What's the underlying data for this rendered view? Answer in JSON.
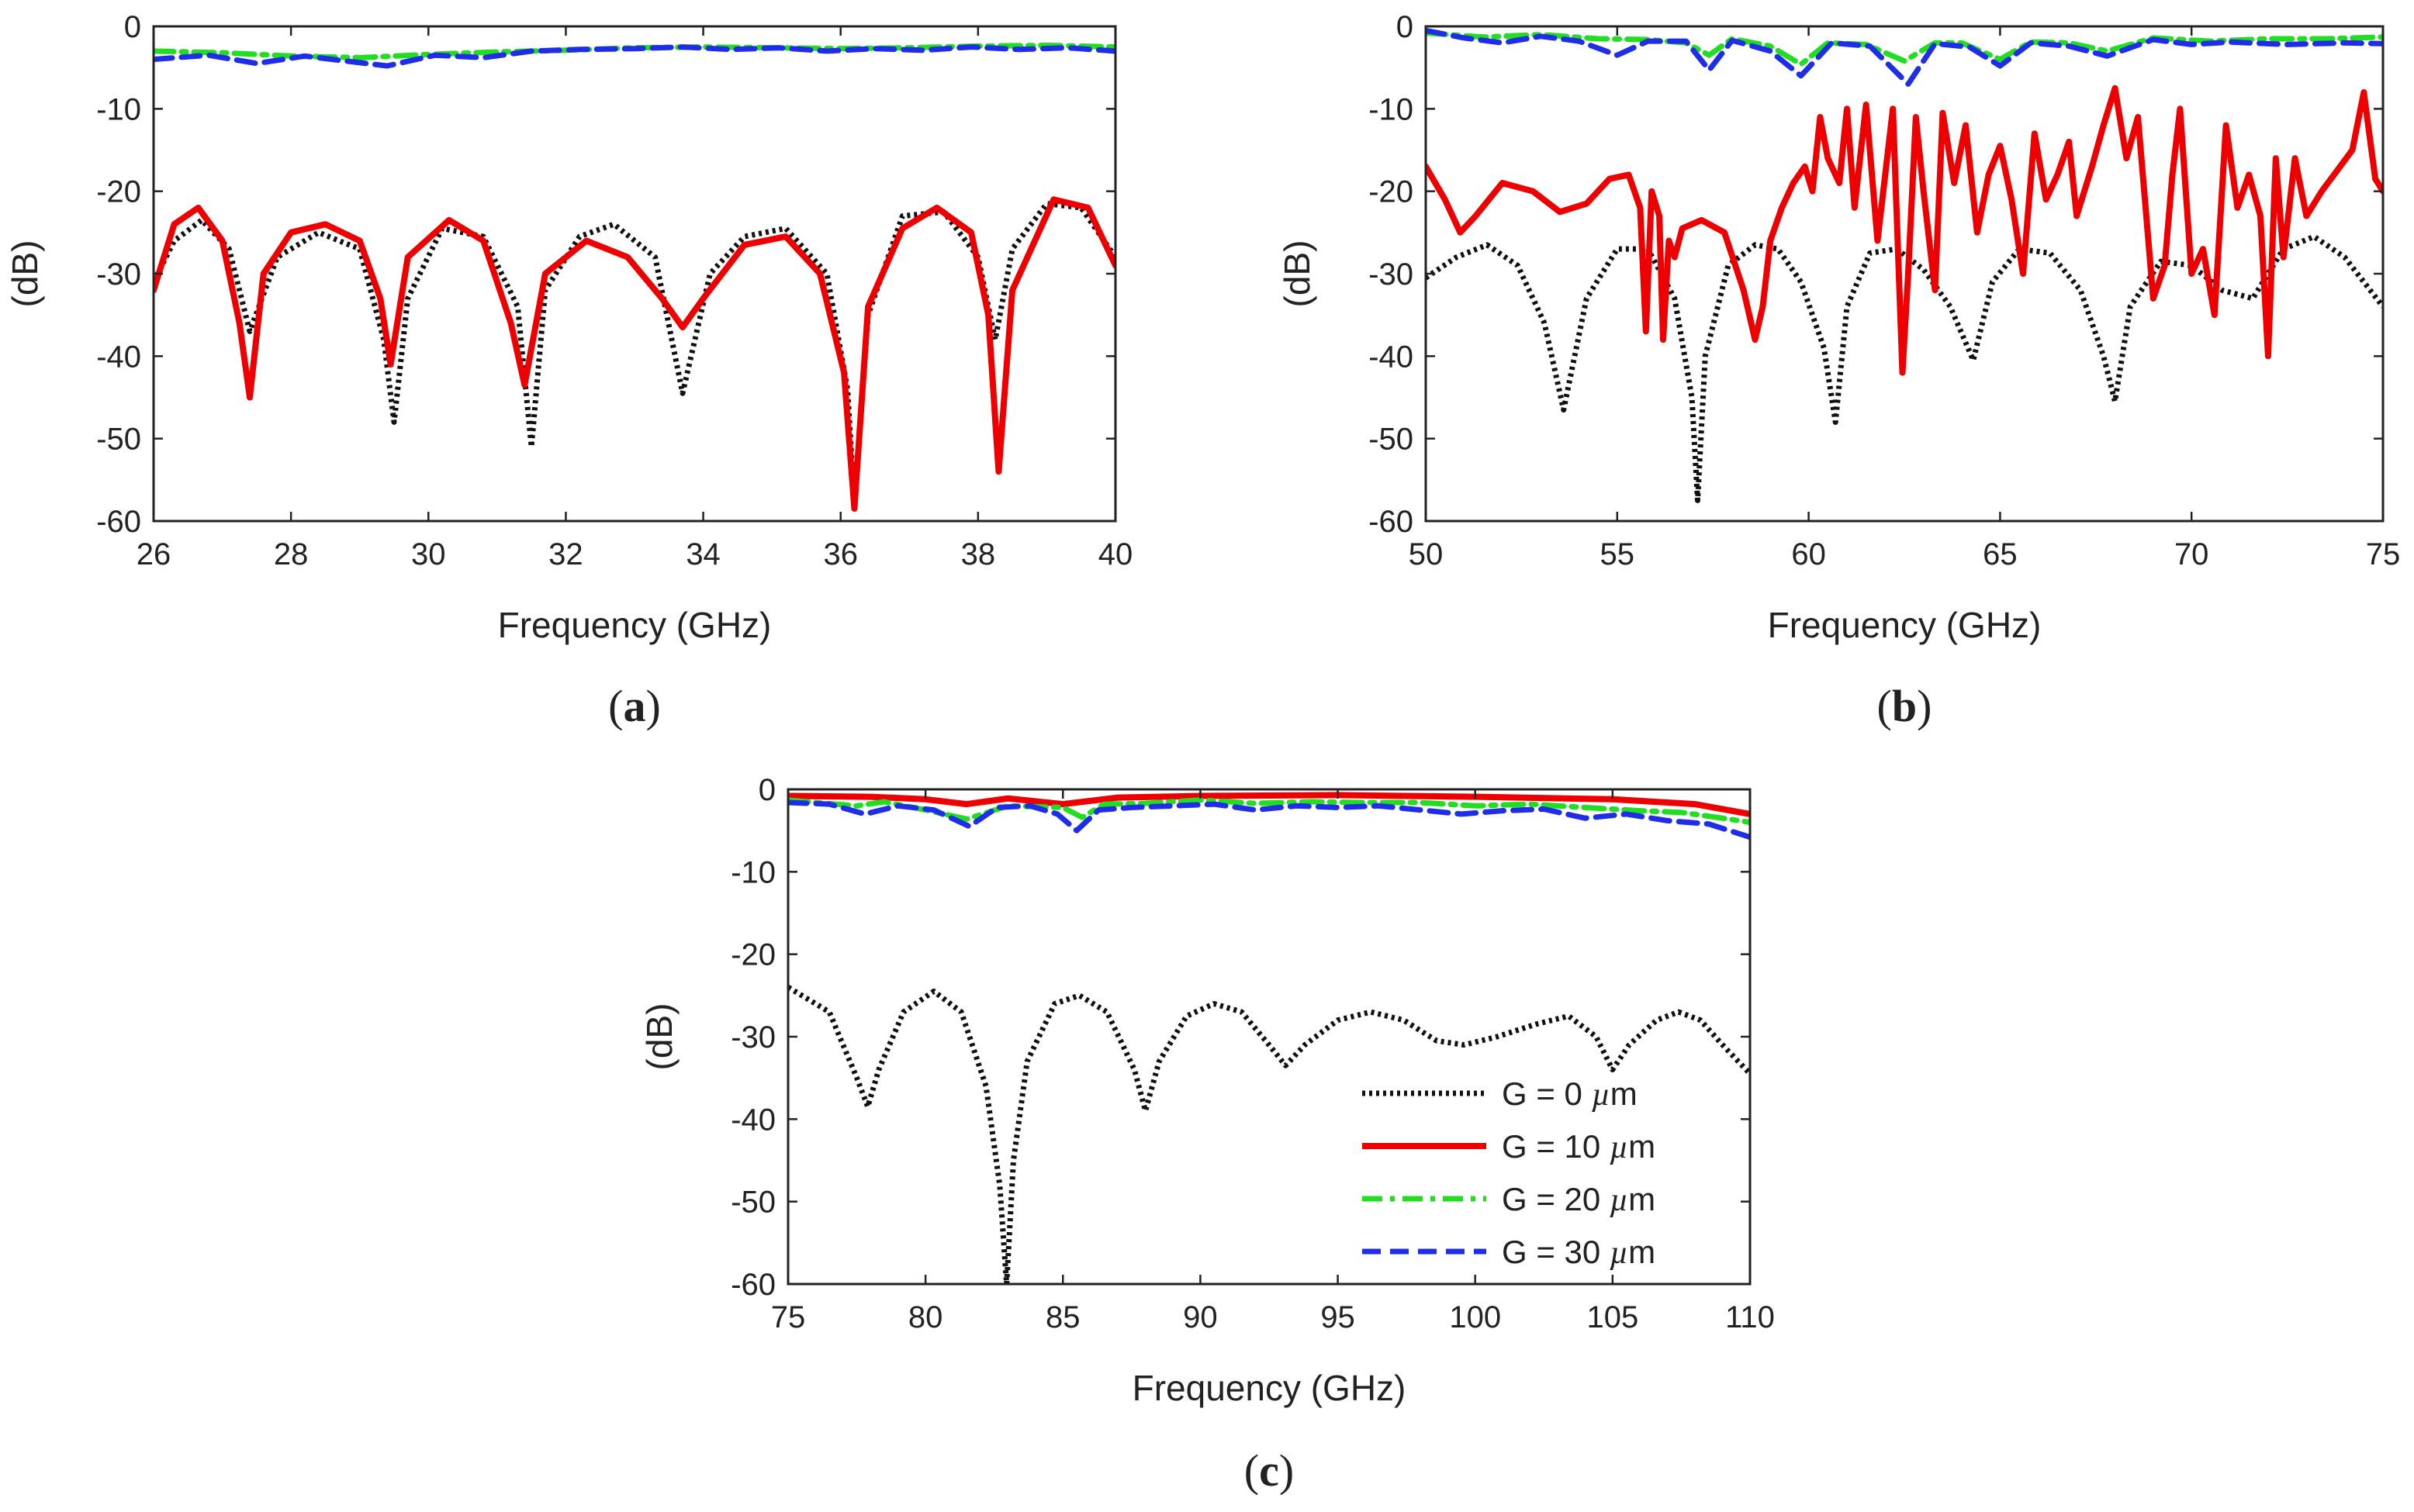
{
  "chart_data": [
    {
      "type": "line",
      "panel": "a",
      "panel_label": "a",
      "xlabel": "Frequency (GHz)",
      "ylabel": "(dB)",
      "xlim": [
        26,
        40
      ],
      "ylim": [
        -60,
        0
      ],
      "xticks": [
        26,
        28,
        30,
        32,
        34,
        36,
        38,
        40
      ],
      "yticks": [
        0,
        -10,
        -20,
        -30,
        -40,
        -50,
        -60
      ],
      "grid": false,
      "series": [
        {
          "name": "G = 0 µm",
          "color": "#111111",
          "style": "dotted",
          "x": [
            26,
            26.3,
            26.7,
            27.1,
            27.4,
            27.8,
            28.4,
            29.0,
            29.35,
            29.5,
            29.7,
            30.2,
            30.8,
            31.3,
            31.5,
            31.7,
            32.2,
            32.7,
            33.3,
            33.7,
            34.1,
            34.6,
            35.2,
            35.8,
            36.1,
            36.2,
            36.4,
            36.9,
            37.5,
            38.0,
            38.25,
            38.5,
            39.0,
            39.5,
            40
          ],
          "y": [
            -31,
            -26,
            -23.5,
            -27,
            -37,
            -28,
            -25,
            -27,
            -38,
            -48,
            -33,
            -24.5,
            -25.5,
            -34,
            -51,
            -32,
            -25.5,
            -24,
            -28,
            -44.5,
            -30,
            -25.5,
            -24.5,
            -30,
            -44,
            -58,
            -35,
            -23,
            -22.5,
            -28,
            -38,
            -27,
            -21.5,
            -22,
            -28
          ]
        },
        {
          "name": "G = 10 µm",
          "color": "#ee0000",
          "style": "solid",
          "x": [
            26,
            26.3,
            26.65,
            27.0,
            27.25,
            27.4,
            27.6,
            28.0,
            28.5,
            29.0,
            29.3,
            29.45,
            29.7,
            30.3,
            30.8,
            31.2,
            31.4,
            31.7,
            32.3,
            32.9,
            33.4,
            33.7,
            34.0,
            34.6,
            35.2,
            35.7,
            36.05,
            36.2,
            36.4,
            36.9,
            37.4,
            37.9,
            38.15,
            38.3,
            38.5,
            39.1,
            39.6,
            40
          ],
          "y": [
            -32,
            -24,
            -22,
            -26,
            -36,
            -45,
            -30,
            -25,
            -24,
            -26,
            -33,
            -41,
            -28,
            -23.5,
            -26,
            -36,
            -43.5,
            -30,
            -26,
            -28,
            -33,
            -36.5,
            -33,
            -26.5,
            -25.5,
            -30,
            -42,
            -58.5,
            -34,
            -24.5,
            -22,
            -25,
            -35,
            -54,
            -32,
            -21,
            -22,
            -29
          ]
        },
        {
          "name": "G = 20 µm",
          "color": "#22dd22",
          "style": "dashdot",
          "x": [
            26,
            27,
            28,
            29,
            29.5,
            30,
            31,
            32,
            33,
            34,
            35,
            36,
            37,
            38,
            39,
            40
          ],
          "y": [
            -3,
            -3.2,
            -3.6,
            -3.8,
            -3.6,
            -3.4,
            -3.1,
            -2.9,
            -2.6,
            -2.5,
            -2.6,
            -2.7,
            -2.6,
            -2.4,
            -2.3,
            -2.5
          ]
        },
        {
          "name": "G = 30 µm",
          "color": "#1f2ee6",
          "style": "dashed",
          "x": [
            26,
            26.8,
            27.5,
            28.2,
            28.8,
            29.4,
            30.1,
            30.8,
            31.5,
            32.2,
            33.0,
            33.7,
            34.4,
            35.1,
            35.8,
            36.5,
            37.2,
            37.9,
            38.6,
            39.3,
            40
          ],
          "y": [
            -4,
            -3.5,
            -4.5,
            -3.6,
            -4.2,
            -4.8,
            -3.5,
            -3.8,
            -3.0,
            -2.8,
            -2.7,
            -2.5,
            -2.8,
            -2.6,
            -3.0,
            -2.7,
            -2.9,
            -2.5,
            -2.8,
            -2.6,
            -3.0
          ]
        }
      ]
    },
    {
      "type": "line",
      "panel": "b",
      "panel_label": "b",
      "xlabel": "Frequency (GHz)",
      "ylabel": "(dB)",
      "xlim": [
        50,
        75
      ],
      "ylim": [
        -60,
        0
      ],
      "xticks": [
        50,
        55,
        60,
        65,
        70,
        75
      ],
      "yticks": [
        0,
        -10,
        -20,
        -30,
        -40,
        -50,
        -60
      ],
      "grid": false,
      "series": [
        {
          "name": "G = 0 µm",
          "color": "#111111",
          "style": "dotted",
          "x": [
            50,
            50.8,
            51.6,
            52.4,
            53.1,
            53.6,
            54.2,
            55.0,
            55.8,
            56.5,
            56.95,
            57.1,
            57.3,
            57.9,
            58.6,
            59.2,
            59.8,
            60.4,
            60.7,
            61.0,
            61.6,
            62.3,
            63.0,
            63.7,
            64.3,
            64.8,
            65.5,
            66.3,
            67.1,
            67.7,
            68.0,
            68.4,
            69.2,
            70.0,
            70.8,
            71.6,
            72.4,
            73.2,
            74.0,
            75
          ],
          "y": [
            -30.5,
            -28,
            -26.5,
            -29,
            -36,
            -46.5,
            -33,
            -27,
            -27,
            -33,
            -45,
            -57.5,
            -40,
            -29,
            -26.5,
            -27,
            -31,
            -39,
            -48,
            -34,
            -27.5,
            -27,
            -29.5,
            -34,
            -40.5,
            -31,
            -27,
            -27.5,
            -32,
            -40,
            -45.5,
            -34,
            -28.5,
            -29,
            -32,
            -33,
            -27,
            -25.5,
            -28,
            -34
          ]
        },
        {
          "name": "G = 10 µm",
          "color": "#ee0000",
          "style": "solid",
          "x": [
            50,
            50.5,
            50.9,
            51.3,
            52.0,
            52.8,
            53.5,
            54.2,
            54.8,
            55.3,
            55.6,
            55.75,
            55.9,
            56.1,
            56.2,
            56.35,
            56.5,
            56.7,
            57.2,
            57.8,
            58.3,
            58.6,
            58.8,
            59.0,
            59.3,
            59.6,
            59.9,
            60.1,
            60.3,
            60.5,
            60.8,
            61.0,
            61.2,
            61.5,
            61.8,
            62.0,
            62.2,
            62.45,
            62.6,
            62.8,
            63.0,
            63.3,
            63.5,
            63.8,
            64.1,
            64.4,
            64.7,
            65.0,
            65.3,
            65.6,
            65.9,
            66.2,
            66.5,
            66.8,
            67.0,
            67.4,
            67.7,
            68.0,
            68.3,
            68.6,
            68.8,
            69.0,
            69.3,
            69.5,
            69.7,
            70.0,
            70.3,
            70.6,
            70.9,
            71.2,
            71.5,
            71.8,
            72.0,
            72.2,
            72.4,
            72.7,
            73.0,
            73.4,
            73.8,
            74.2,
            74.5,
            74.8,
            75
          ],
          "y": [
            -17,
            -21,
            -25,
            -23,
            -19,
            -20,
            -22.5,
            -21.5,
            -18.5,
            -18,
            -22,
            -37,
            -20,
            -23,
            -38,
            -26,
            -28,
            -24.5,
            -23.5,
            -25,
            -32,
            -38,
            -34,
            -26,
            -22,
            -19,
            -17,
            -20,
            -11,
            -16,
            -19,
            -10,
            -22,
            -9.5,
            -26,
            -18,
            -10,
            -42,
            -30,
            -11,
            -20,
            -32,
            -10.5,
            -19,
            -12,
            -25,
            -18,
            -14.5,
            -21,
            -30,
            -13,
            -21,
            -18,
            -14,
            -23,
            -17,
            -12,
            -7.5,
            -16,
            -11,
            -22,
            -33,
            -29,
            -18,
            -10,
            -30,
            -27,
            -35,
            -12,
            -22,
            -18,
            -23,
            -40,
            -16,
            -28,
            -16,
            -23,
            -20,
            -17.5,
            -15,
            -8,
            -18.5,
            -20
          ]
        },
        {
          "name": "G = 20 µm",
          "color": "#22dd22",
          "style": "dashdot",
          "x": [
            50,
            51.5,
            53,
            54.5,
            55.8,
            56.8,
            57.4,
            58,
            59,
            59.8,
            60.5,
            61.5,
            62.5,
            63.3,
            64,
            65,
            65.8,
            66.8,
            67.8,
            69,
            70.5,
            72,
            73.5,
            75
          ],
          "y": [
            -0.8,
            -1.3,
            -1.0,
            -1.5,
            -1.6,
            -2.0,
            -3.5,
            -1.5,
            -2.4,
            -4.6,
            -2.0,
            -2.2,
            -4.2,
            -2.0,
            -2.0,
            -4.0,
            -1.9,
            -2.0,
            -3.0,
            -1.4,
            -1.8,
            -1.5,
            -1.5,
            -1.3
          ]
        },
        {
          "name": "G = 30 µm",
          "color": "#1f2ee6",
          "style": "dashed",
          "x": [
            50,
            51,
            52,
            53,
            54,
            55,
            55.8,
            56.8,
            57.4,
            58,
            59,
            59.8,
            60.6,
            61.6,
            62.6,
            63.3,
            64.2,
            65,
            65.8,
            66.8,
            67.8,
            69,
            70,
            71,
            72.5,
            74,
            75
          ],
          "y": [
            -0.5,
            -1.4,
            -2.0,
            -1.2,
            -1.8,
            -3.5,
            -1.8,
            -1.8,
            -5.3,
            -1.7,
            -3.0,
            -6.0,
            -2.0,
            -2.4,
            -7.0,
            -2.1,
            -2.5,
            -4.8,
            -2.0,
            -2.4,
            -3.6,
            -1.6,
            -2.2,
            -1.9,
            -2.2,
            -2.0,
            -2.1
          ]
        }
      ]
    },
    {
      "type": "line",
      "panel": "c",
      "panel_label": "c",
      "xlabel": "Frequency (GHz)",
      "ylabel": "(dB)",
      "xlim": [
        75,
        110
      ],
      "ylim": [
        -60,
        0
      ],
      "xticks": [
        75,
        80,
        85,
        90,
        95,
        100,
        105,
        110
      ],
      "yticks": [
        0,
        -10,
        -20,
        -30,
        -40,
        -50,
        -60
      ],
      "grid": false,
      "legend": "bottom-right",
      "series": [
        {
          "name": "G = 0 µm",
          "color": "#111111",
          "style": "dotted",
          "x": [
            75,
            76.5,
            77.5,
            77.9,
            78.3,
            79.2,
            80.3,
            81.3,
            82.2,
            82.7,
            82.95,
            83.2,
            83.7,
            84.7,
            85.6,
            86.6,
            87.6,
            88.0,
            88.5,
            89.5,
            90.5,
            91.5,
            92.5,
            93.1,
            93.8,
            95,
            96.2,
            97.4,
            98.6,
            99.6,
            100.8,
            102.2,
            103.4,
            104.4,
            105.0,
            105.6,
            106.6,
            107.4,
            108.2,
            109,
            110
          ],
          "y": [
            -24,
            -27,
            -35,
            -38.5,
            -34,
            -27,
            -24.5,
            -27,
            -36,
            -48,
            -60,
            -45,
            -33,
            -26,
            -25,
            -27,
            -34,
            -39,
            -33,
            -27.5,
            -26,
            -27,
            -31,
            -33.5,
            -31,
            -28,
            -27,
            -28,
            -30.5,
            -31,
            -30,
            -28.5,
            -27.5,
            -30,
            -34,
            -31,
            -28,
            -27,
            -28,
            -31,
            -34.5
          ]
        },
        {
          "name": "G = 10 µm",
          "color": "#ee0000",
          "style": "solid",
          "x": [
            75,
            78,
            80,
            81.5,
            83,
            85,
            87,
            90,
            95,
            100,
            105,
            108,
            110
          ],
          "y": [
            -0.8,
            -0.9,
            -1.2,
            -1.8,
            -1.1,
            -1.8,
            -1.0,
            -0.8,
            -0.7,
            -0.9,
            -1.2,
            -1.8,
            -3.0
          ]
        },
        {
          "name": "G = 20 µm",
          "color": "#22dd22",
          "style": "dashdot",
          "x": [
            75,
            76,
            77.5,
            78.5,
            80,
            81.5,
            83,
            85,
            85.7,
            86.5,
            88,
            90,
            92,
            94,
            96,
            98,
            100,
            102,
            104,
            106,
            107.5,
            109,
            110
          ],
          "y": [
            -1.3,
            -1.6,
            -2.0,
            -1.5,
            -2.5,
            -3.6,
            -2.0,
            -2.2,
            -3.4,
            -1.8,
            -1.7,
            -1.3,
            -1.7,
            -1.5,
            -1.6,
            -1.6,
            -2.0,
            -1.8,
            -2.2,
            -2.6,
            -2.8,
            -3.5,
            -4.0
          ]
        },
        {
          "name": "G = 30 µm",
          "color": "#1f2ee6",
          "style": "dashed",
          "x": [
            75,
            76.5,
            77.8,
            79,
            80.3,
            81.6,
            82.6,
            83.8,
            84.8,
            85.5,
            86.3,
            87.5,
            89,
            90.5,
            92,
            93.5,
            95,
            96.5,
            98,
            99.5,
            101,
            102.5,
            104,
            105.5,
            107,
            108.5,
            110
          ],
          "y": [
            -1.6,
            -1.8,
            -3.0,
            -2.0,
            -2.5,
            -4.5,
            -2.2,
            -2.0,
            -3.0,
            -5.0,
            -2.5,
            -2.2,
            -2.0,
            -1.8,
            -2.5,
            -2.0,
            -2.2,
            -2.0,
            -2.5,
            -3.0,
            -2.6,
            -2.4,
            -3.5,
            -3.0,
            -3.8,
            -4.2,
            -5.8
          ]
        }
      ]
    }
  ]
}
